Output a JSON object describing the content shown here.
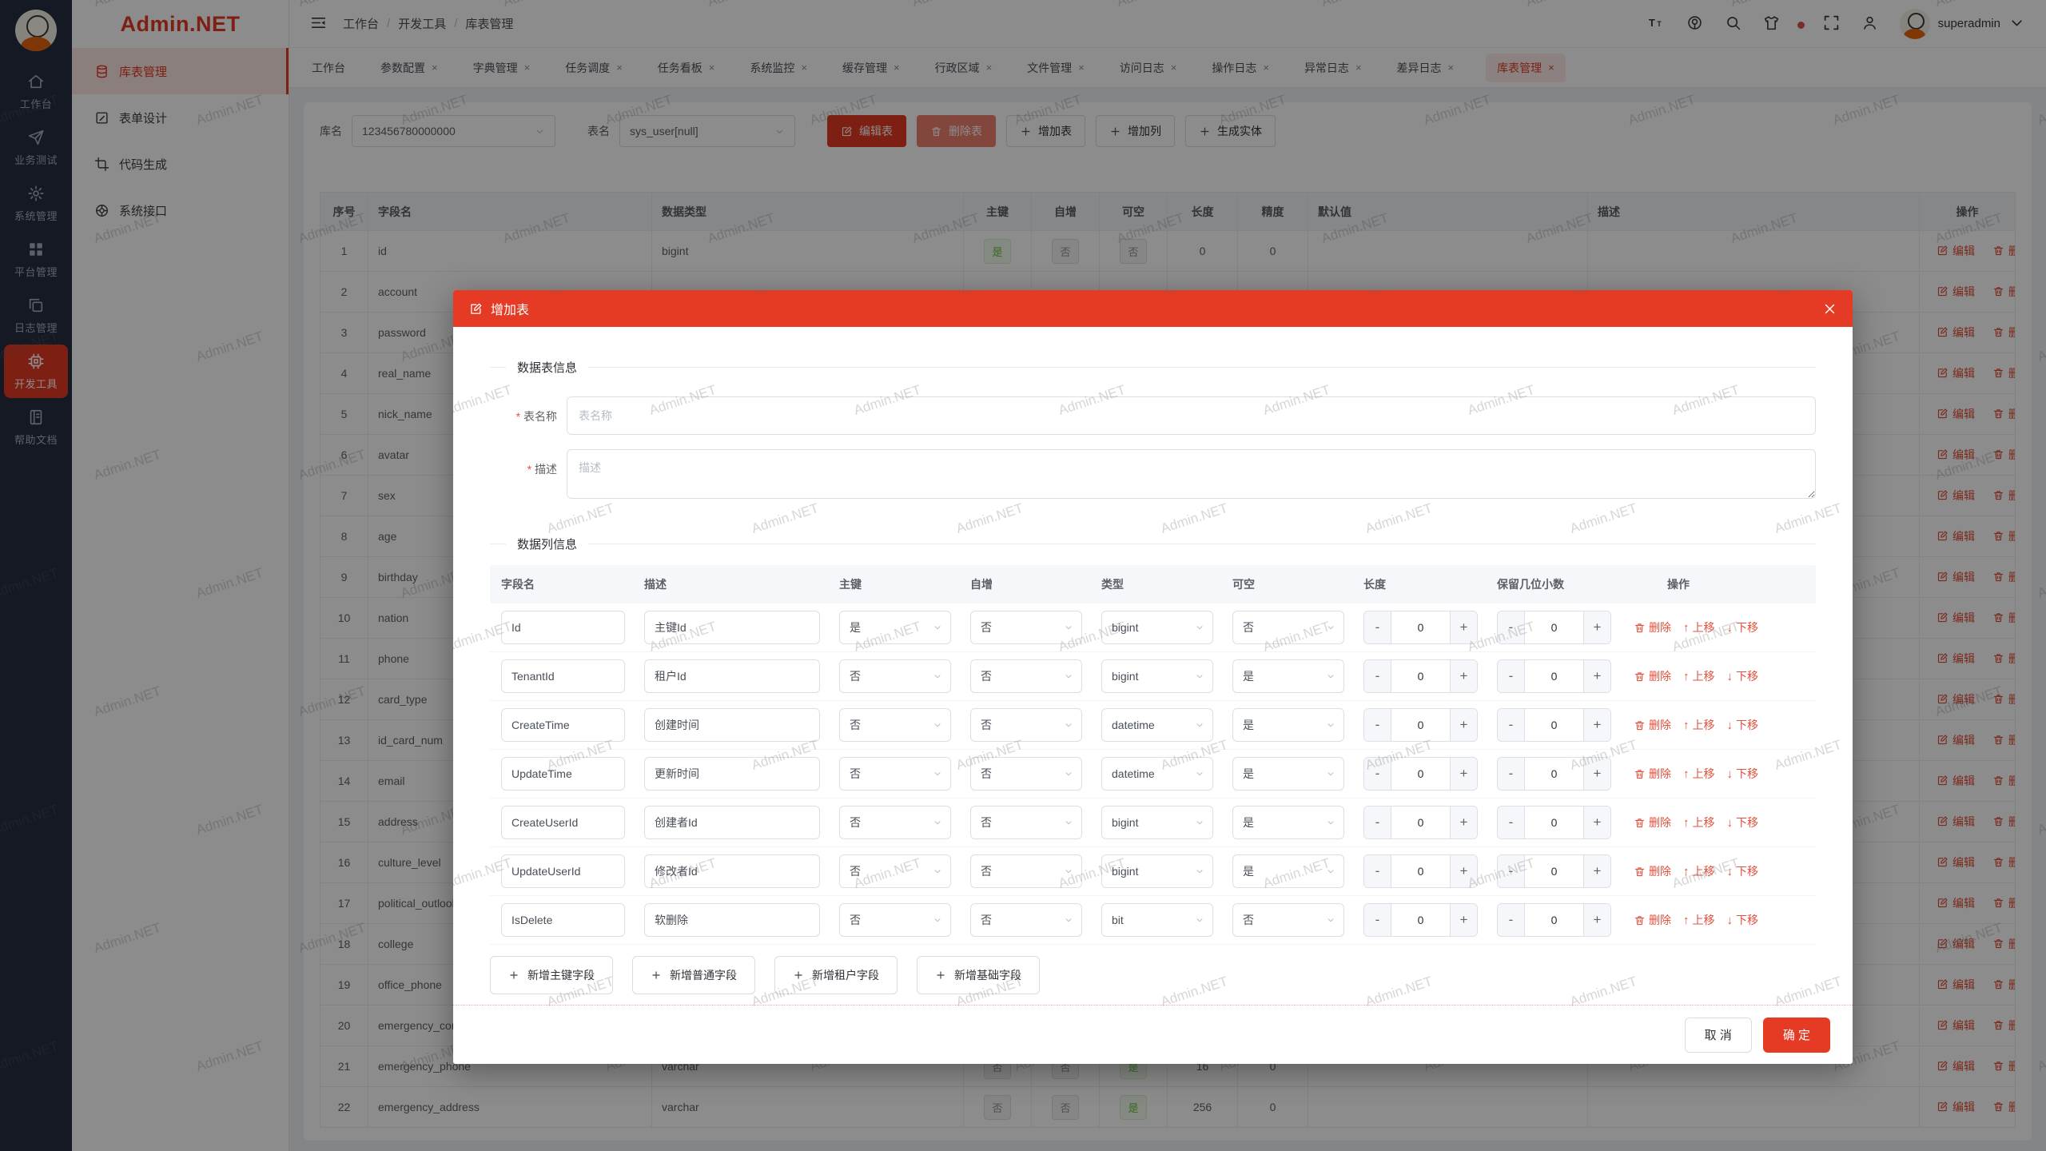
{
  "app": {
    "name": "Admin.NET"
  },
  "watermark": {
    "text": "Admin.NET"
  },
  "colors": {
    "primary": "#e53a23",
    "success": "#67c23a",
    "info": "#909399",
    "danger": "#f56c6c",
    "rail_bg": "#252f42"
  },
  "rail": {
    "items": [
      {
        "icon": "home-icon",
        "label": "工作台"
      },
      {
        "icon": "send-icon",
        "label": "业务测试"
      },
      {
        "icon": "gear-icon",
        "label": "系统管理"
      },
      {
        "icon": "grid-icon",
        "label": "平台管理"
      },
      {
        "icon": "copy-icon",
        "label": "日志管理"
      },
      {
        "icon": "cpu-icon",
        "label": "开发工具",
        "active": true
      },
      {
        "icon": "notebook-icon",
        "label": "帮助文档"
      }
    ]
  },
  "sidebar": {
    "logo": "Admin.NET",
    "items": [
      {
        "icon": "database-icon",
        "label": "库表管理",
        "active": true
      },
      {
        "icon": "form-icon",
        "label": "表单设计"
      },
      {
        "icon": "codegen-icon",
        "label": "代码生成"
      },
      {
        "icon": "api-icon",
        "label": "系统接口"
      }
    ]
  },
  "header": {
    "breadcrumb": [
      "工作台",
      "开发工具",
      "库表管理"
    ],
    "username": "superadmin"
  },
  "tabs": [
    {
      "label": "工作台"
    },
    {
      "label": "参数配置",
      "closable": true
    },
    {
      "label": "字典管理",
      "closable": true
    },
    {
      "label": "任务调度",
      "closable": true
    },
    {
      "label": "任务看板",
      "closable": true
    },
    {
      "label": "系统监控",
      "closable": true
    },
    {
      "label": "缓存管理",
      "closable": true
    },
    {
      "label": "行政区域",
      "closable": true
    },
    {
      "label": "文件管理",
      "closable": true
    },
    {
      "label": "访问日志",
      "closable": true
    },
    {
      "label": "操作日志",
      "closable": true
    },
    {
      "label": "异常日志",
      "closable": true
    },
    {
      "label": "差异日志",
      "closable": true
    },
    {
      "label": "库表管理",
      "closable": true,
      "active": true
    }
  ],
  "toolbar": {
    "db_label": "库名",
    "db_value": "123456780000000",
    "table_label": "表名",
    "table_value": "sys_user[null]",
    "edit_table": "编辑表",
    "delete_table": "删除表",
    "add_table": "增加表",
    "add_column": "增加列",
    "gen_entity": "生成实体"
  },
  "table": {
    "columns": [
      "序号",
      "字段名",
      "数据类型",
      "主键",
      "自增",
      "可空",
      "长度",
      "精度",
      "默认值",
      "描述",
      "操作"
    ],
    "edit_label": "编辑",
    "delete_label": "删除",
    "rows": [
      {
        "no": 1,
        "name": "id",
        "type": "bigint",
        "pk": "是",
        "inc": "否",
        "nul": "否",
        "len": "0",
        "prec": "0",
        "def": "",
        "desc": ""
      },
      {
        "no": 2,
        "name": "account",
        "type": "",
        "pk": "",
        "inc": "",
        "nul": "",
        "len": "",
        "prec": "",
        "def": "",
        "desc": ""
      },
      {
        "no": 3,
        "name": "password",
        "type": "",
        "pk": "",
        "inc": "",
        "nul": "",
        "len": "",
        "prec": "",
        "def": "",
        "desc": ""
      },
      {
        "no": 4,
        "name": "real_name",
        "type": "",
        "pk": "",
        "inc": "",
        "nul": "",
        "len": "",
        "prec": "",
        "def": "",
        "desc": ""
      },
      {
        "no": 5,
        "name": "nick_name",
        "type": "",
        "pk": "",
        "inc": "",
        "nul": "",
        "len": "",
        "prec": "",
        "def": "",
        "desc": ""
      },
      {
        "no": 6,
        "name": "avatar",
        "type": "",
        "pk": "",
        "inc": "",
        "nul": "",
        "len": "",
        "prec": "",
        "def": "",
        "desc": ""
      },
      {
        "no": 7,
        "name": "sex",
        "type": "",
        "pk": "",
        "inc": "",
        "nul": "",
        "len": "",
        "prec": "",
        "def": "",
        "desc": ""
      },
      {
        "no": 8,
        "name": "age",
        "type": "",
        "pk": "",
        "inc": "",
        "nul": "",
        "len": "",
        "prec": "",
        "def": "",
        "desc": ""
      },
      {
        "no": 9,
        "name": "birthday",
        "type": "",
        "pk": "",
        "inc": "",
        "nul": "",
        "len": "",
        "prec": "",
        "def": "",
        "desc": ""
      },
      {
        "no": 10,
        "name": "nation",
        "type": "",
        "pk": "",
        "inc": "",
        "nul": "",
        "len": "",
        "prec": "",
        "def": "",
        "desc": ""
      },
      {
        "no": 11,
        "name": "phone",
        "type": "",
        "pk": "",
        "inc": "",
        "nul": "",
        "len": "",
        "prec": "",
        "def": "",
        "desc": ""
      },
      {
        "no": 12,
        "name": "card_type",
        "type": "",
        "pk": "",
        "inc": "",
        "nul": "",
        "len": "",
        "prec": "",
        "def": "",
        "desc": ""
      },
      {
        "no": 13,
        "name": "id_card_num",
        "type": "",
        "pk": "",
        "inc": "",
        "nul": "",
        "len": "",
        "prec": "",
        "def": "",
        "desc": ""
      },
      {
        "no": 14,
        "name": "email",
        "type": "",
        "pk": "",
        "inc": "",
        "nul": "",
        "len": "",
        "prec": "",
        "def": "",
        "desc": ""
      },
      {
        "no": 15,
        "name": "address",
        "type": "",
        "pk": "",
        "inc": "",
        "nul": "",
        "len": "",
        "prec": "",
        "def": "",
        "desc": ""
      },
      {
        "no": 16,
        "name": "culture_level",
        "type": "",
        "pk": "",
        "inc": "",
        "nul": "",
        "len": "",
        "prec": "",
        "def": "",
        "desc": ""
      },
      {
        "no": 17,
        "name": "political_outlook",
        "type": "",
        "pk": "",
        "inc": "",
        "nul": "",
        "len": "",
        "prec": "",
        "def": "",
        "desc": ""
      },
      {
        "no": 18,
        "name": "college",
        "type": "",
        "pk": "",
        "inc": "",
        "nul": "",
        "len": "",
        "prec": "",
        "def": "",
        "desc": ""
      },
      {
        "no": 19,
        "name": "office_phone",
        "type": "",
        "pk": "",
        "inc": "",
        "nul": "",
        "len": "",
        "prec": "",
        "def": "",
        "desc": ""
      },
      {
        "no": 20,
        "name": "emergency_contact",
        "type": "",
        "pk": "",
        "inc": "",
        "nul": "",
        "len": "",
        "prec": "",
        "def": "",
        "desc": ""
      },
      {
        "no": 21,
        "name": "emergency_phone",
        "type": "varchar",
        "pk": "否",
        "inc": "否",
        "nul": "是",
        "len": "16",
        "prec": "0",
        "def": "",
        "desc": ""
      },
      {
        "no": 22,
        "name": "emergency_address",
        "type": "varchar",
        "pk": "否",
        "inc": "否",
        "nul": "是",
        "len": "256",
        "prec": "0",
        "def": "",
        "desc": ""
      }
    ]
  },
  "modal": {
    "title": "增加表",
    "section_table_info": "数据表信息",
    "fields": {
      "table_name_label": "表名称",
      "table_name_placeholder": "表名称",
      "desc_label": "描述",
      "desc_placeholder": "描述"
    },
    "section_column_info": "数据列信息",
    "columns_header": [
      "字段名",
      "描述",
      "主键",
      "自增",
      "类型",
      "可空",
      "长度",
      "保留几位小数",
      "操作"
    ],
    "row_ops": {
      "delete": "删除",
      "up": "上移",
      "down": "下移"
    },
    "rows": [
      {
        "name": "Id",
        "desc": "主键Id",
        "pk": "是",
        "inc": "否",
        "type": "bigint",
        "nul": "否",
        "len": "0",
        "dec": "0"
      },
      {
        "name": "TenantId",
        "desc": "租户Id",
        "pk": "否",
        "inc": "否",
        "type": "bigint",
        "nul": "是",
        "len": "0",
        "dec": "0"
      },
      {
        "name": "CreateTime",
        "desc": "创建时间",
        "pk": "否",
        "inc": "否",
        "type": "datetime",
        "nul": "是",
        "len": "0",
        "dec": "0"
      },
      {
        "name": "UpdateTime",
        "desc": "更新时间",
        "pk": "否",
        "inc": "否",
        "type": "datetime",
        "nul": "是",
        "len": "0",
        "dec": "0"
      },
      {
        "name": "CreateUserId",
        "desc": "创建者Id",
        "pk": "否",
        "inc": "否",
        "type": "bigint",
        "nul": "是",
        "len": "0",
        "dec": "0"
      },
      {
        "name": "UpdateUserId",
        "desc": "修改者Id",
        "pk": "否",
        "inc": "否",
        "type": "bigint",
        "nul": "是",
        "len": "0",
        "dec": "0"
      },
      {
        "name": "IsDelete",
        "desc": "软删除",
        "pk": "否",
        "inc": "否",
        "type": "bit",
        "nul": "否",
        "len": "0",
        "dec": "0"
      }
    ],
    "add_buttons": [
      "新增主键字段",
      "新增普通字段",
      "新增租户字段",
      "新增基础字段"
    ],
    "cancel": "取 消",
    "confirm": "确 定"
  }
}
